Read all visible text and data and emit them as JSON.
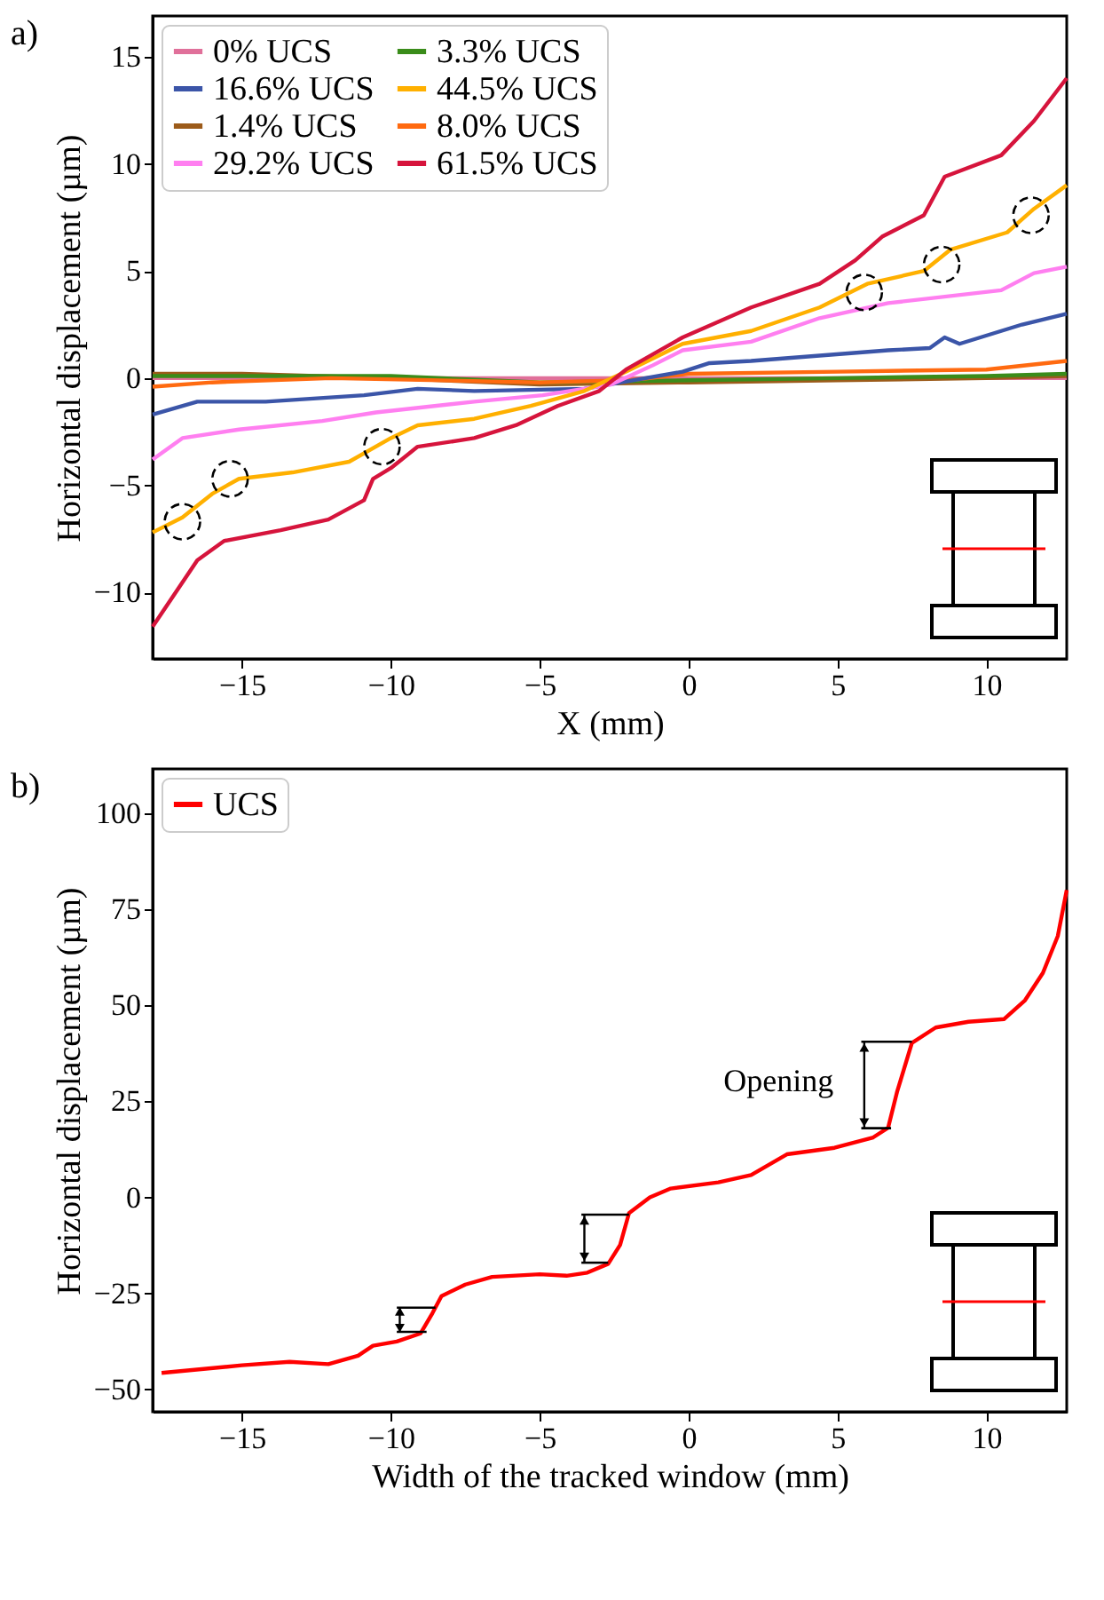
{
  "chart_data": [
    {
      "type": "line",
      "title": "a)",
      "xlabel": "X (mm)",
      "ylabel": "Horizontal displacement (µm)",
      "xlim": [
        -18,
        12.7
      ],
      "ylim": [
        -13.1,
        16.9
      ],
      "xticks": [
        -15,
        -10,
        -5,
        0,
        5,
        10
      ],
      "yticks": [
        -10,
        -5,
        0,
        5,
        10,
        15
      ],
      "grid": false,
      "legend": "top left",
      "series": [
        {
          "name": "0% UCS",
          "color": "#e0709a",
          "x": [
            -18,
            12.7
          ],
          "values": [
            0,
            0
          ]
        },
        {
          "name": "1.4% UCS",
          "color": "#9c5b1a",
          "x": [
            -18,
            -15,
            -10,
            -5,
            0,
            5,
            10,
            12.7
          ],
          "values": [
            0.2,
            0.2,
            0.0,
            -0.3,
            -0.2,
            -0.1,
            0.0,
            0.1
          ]
        },
        {
          "name": "3.3% UCS",
          "color": "#3a8c1a",
          "x": [
            -18,
            -10,
            -5,
            0,
            5,
            10,
            12.7
          ],
          "values": [
            0.1,
            0.1,
            -0.2,
            -0.1,
            0.0,
            0.1,
            0.2
          ]
        },
        {
          "name": "8.0% UCS",
          "color": "#ff6a10",
          "x": [
            -18,
            -16,
            -12,
            -5,
            -2,
            0,
            5,
            10,
            12.7
          ],
          "values": [
            -0.4,
            -0.2,
            0.0,
            -0.2,
            -0.1,
            0.2,
            0.3,
            0.4,
            0.8
          ]
        },
        {
          "name": "16.6% UCS",
          "color": "#3b55a8",
          "x": [
            -18,
            -16.5,
            -14.2,
            -10.9,
            -9.1,
            -7.2,
            -3.5,
            -0.2,
            0.7,
            2.1,
            6.7,
            8.1,
            8.6,
            9.1,
            11.2,
            12.7
          ],
          "values": [
            -1.7,
            -1.1,
            -1.1,
            -0.8,
            -0.5,
            -0.6,
            -0.5,
            0.3,
            0.7,
            0.8,
            1.3,
            1.4,
            1.9,
            1.6,
            2.5,
            3.0
          ]
        },
        {
          "name": "29.2% UCS",
          "color": "#ff7ff0",
          "x": [
            -18,
            -17,
            -15.1,
            -12.3,
            -10.5,
            -7.2,
            -4.9,
            -2.6,
            -1.2,
            -0.2,
            2.1,
            4.4,
            6.7,
            10.5,
            11.6,
            12.7
          ],
          "values": [
            -3.8,
            -2.8,
            -2.4,
            -2.0,
            -1.6,
            -1.1,
            -0.8,
            -0.3,
            0.6,
            1.3,
            1.7,
            2.8,
            3.5,
            4.1,
            4.9,
            5.2
          ]
        },
        {
          "name": "44.5% UCS",
          "color": "#ffb000",
          "x": [
            -18,
            -17,
            -16,
            -15.1,
            -13.3,
            -11.4,
            -10,
            -9.1,
            -7.2,
            -5.3,
            -3.5,
            -2.1,
            -0.2,
            2.1,
            4.4,
            6,
            7.9,
            8.8,
            10.7,
            11.6,
            12.7
          ],
          "values": [
            -7.2,
            -6.5,
            -5.4,
            -4.7,
            -4.4,
            -3.9,
            -2.8,
            -2.2,
            -1.9,
            -1.3,
            -0.6,
            0.3,
            1.6,
            2.2,
            3.3,
            4.4,
            5.0,
            6.0,
            6.8,
            7.9,
            9.0
          ]
        },
        {
          "name": "61.5% UCS",
          "color": "#d6143c",
          "x": [
            -18,
            -16.5,
            -15.6,
            -13.7,
            -12.1,
            -10.9,
            -10.6,
            -10,
            -9.1,
            -7.2,
            -5.8,
            -4.4,
            -3,
            -2.1,
            -0.2,
            2.1,
            4.4,
            5.6,
            6.5,
            7.9,
            8.6,
            10.5,
            11.6,
            12.7
          ],
          "values": [
            -11.6,
            -8.5,
            -7.6,
            -7.1,
            -6.6,
            -5.7,
            -4.7,
            -4.2,
            -3.2,
            -2.8,
            -2.2,
            -1.3,
            -0.6,
            0.4,
            1.9,
            3.3,
            4.4,
            5.5,
            6.6,
            7.6,
            9.4,
            10.4,
            12.0,
            14.0
          ]
        }
      ]
    },
    {
      "type": "line",
      "title": "b)",
      "xlabel": "Width of the tracked window (mm)",
      "ylabel": "Horizontal displacement (µm)",
      "xlim": [
        -18,
        12.7
      ],
      "ylim": [
        -55.8,
        111.5
      ],
      "xticks": [
        -15,
        -10,
        -5,
        0,
        5,
        10
      ],
      "yticks": [
        -50,
        -25,
        0,
        25,
        50,
        75,
        100
      ],
      "grid": false,
      "legend": "top left",
      "annotations": [
        "Opening"
      ],
      "series": [
        {
          "name": "UCS",
          "color": "#ff0000",
          "x": [
            -17.7,
            -15,
            -13.4,
            -12.1,
            -11.1,
            -10.6,
            -9.8,
            -9,
            -8.6,
            -8.3,
            -7.5,
            -6.6,
            -5,
            -4.1,
            -3.4,
            -2.7,
            -2.3,
            -2,
            -1.3,
            -0.6,
            1,
            2.1,
            3.3,
            4.9,
            6.2,
            6.7,
            7,
            7.5,
            8.3,
            9.4,
            10.6,
            11.3,
            11.9,
            12.4,
            12.7
          ],
          "values": [
            -45.7,
            -43.7,
            -42.8,
            -43.4,
            -41.2,
            -38.6,
            -37.5,
            -35.4,
            -30.1,
            -25.7,
            -22.7,
            -20.7,
            -20.0,
            -20.4,
            -19.6,
            -17.3,
            -12.4,
            -4.1,
            0,
            2.3,
            3.9,
            5.8,
            11.2,
            12.9,
            15.6,
            18.1,
            27.4,
            40.2,
            44.2,
            45.7,
            46.4,
            51.3,
            58.4,
            68,
            80
          ]
        }
      ]
    }
  ]
}
